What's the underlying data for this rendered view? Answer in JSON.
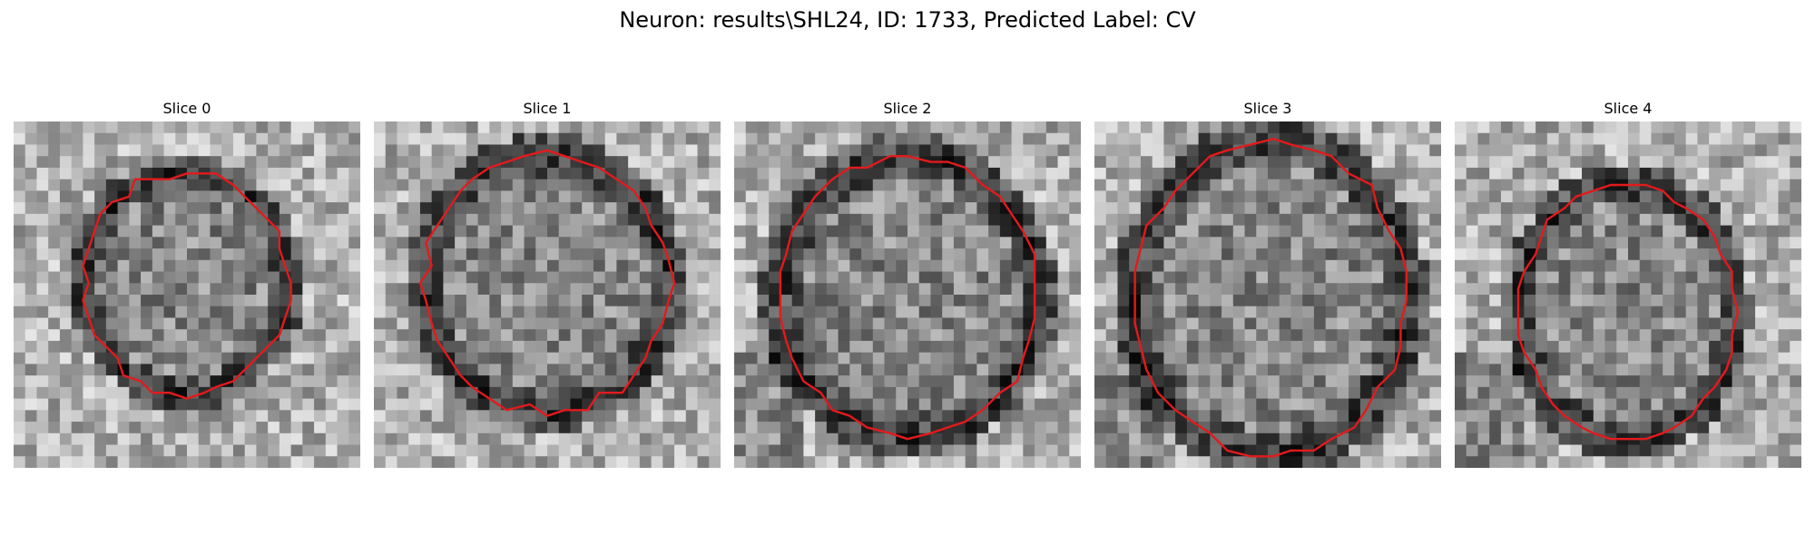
{
  "figure": {
    "title": "Neuron: results\\SHL24, ID: 1733, Predicted Label: CV",
    "colors": {
      "contour": "#e31a1c",
      "background": "#ffffff"
    }
  },
  "panels": [
    {
      "title": "Slice 0",
      "image": "grayscale-noise-texture"
    },
    {
      "title": "Slice 1",
      "image": "grayscale-noise-texture"
    },
    {
      "title": "Slice 2",
      "image": "grayscale-noise-texture"
    },
    {
      "title": "Slice 3",
      "image": "grayscale-noise-texture"
    },
    {
      "title": "Slice 4",
      "image": "grayscale-noise-texture"
    }
  ]
}
